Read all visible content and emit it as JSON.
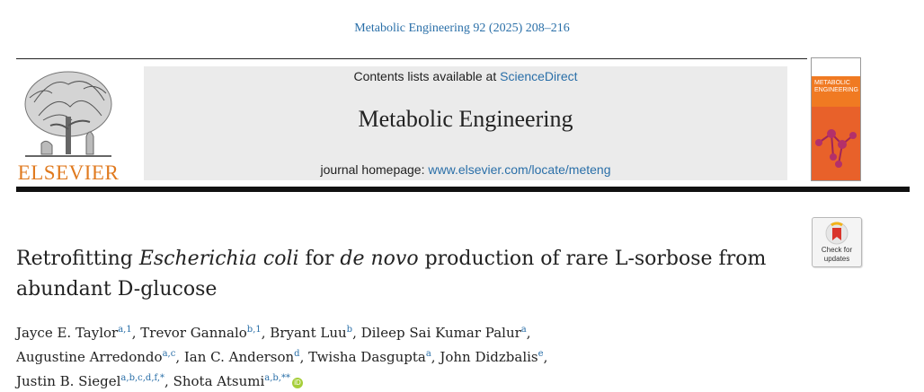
{
  "header": {
    "citation": "Metabolic Engineering 92 (2025) 208–216",
    "contents_prefix": "Contents lists available at ",
    "contents_link": "ScienceDirect",
    "journal_title": "Metabolic Engineering",
    "homepage_prefix": "journal homepage: ",
    "homepage_link": "www.elsevier.com/locate/meteng",
    "publisher": "ELSEVIER",
    "cover_title_line1": "METABOLIC",
    "cover_title_line2": "ENGINEERING",
    "check_updates_line1": "Check for",
    "check_updates_line2": "updates"
  },
  "article": {
    "title_part1": "Retrofitting ",
    "title_italic1": "Escherichia coli",
    "title_part2": " for ",
    "title_italic2": "de novo",
    "title_part3": " production of rare L-sorbose from abundant D-glucose"
  },
  "authors": [
    {
      "name": "Jayce E. Taylor",
      "affil": "a,1",
      "sep": ", "
    },
    {
      "name": "Trevor Gannalo",
      "affil": "b,1",
      "sep": ", "
    },
    {
      "name": "Bryant Luu",
      "affil": "b",
      "sep": ", "
    },
    {
      "name": "Dileep Sai Kumar Palur",
      "affil": "a",
      "sep": ","
    },
    {
      "name": "Augustine Arredondo",
      "affil": "a,c",
      "sep": ", "
    },
    {
      "name": "Ian C. Anderson",
      "affil": "d",
      "sep": ", "
    },
    {
      "name": "Twisha Dasgupta",
      "affil": "a",
      "sep": ", "
    },
    {
      "name": "John Didzbalis",
      "affil": "e",
      "sep": ","
    },
    {
      "name": "Justin B. Siegel",
      "affil": "a,b,c,d,f,*",
      "sep": ", "
    },
    {
      "name": "Shota Atsumi",
      "affil": "a,b,**",
      "sep": ""
    }
  ],
  "icons": {
    "orcid": "orcid-icon",
    "orcid_glyph": "iD",
    "check_updates": "check-for-updates-icon",
    "publisher_logo": "elsevier-tree-logo"
  },
  "colors": {
    "link": "#2a6fa8",
    "publisher_orange": "#e07a1f",
    "cover_orange": "#f07a22",
    "orcid_green": "#a6ce39"
  }
}
